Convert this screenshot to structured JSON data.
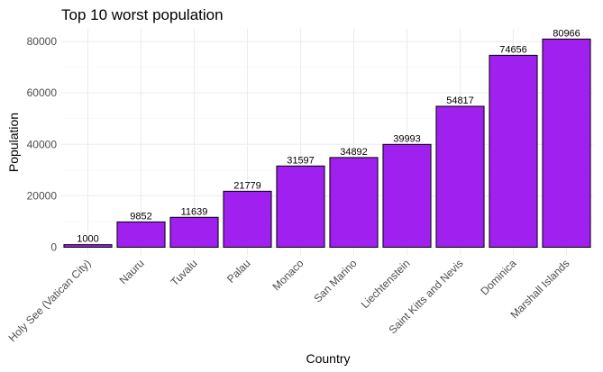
{
  "chart_data": {
    "type": "bar",
    "title": "Top 10 worst population",
    "xlabel": "Country",
    "ylabel": "Population",
    "categories": [
      "Holy See (Vatican City)",
      "Nauru",
      "Tuvalu",
      "Palau",
      "Monaco",
      "San Marino",
      "Liechtenstein",
      "Saint Kitts and Nevis",
      "Dominica",
      "Marshall Islands"
    ],
    "values": [
      1000,
      9852,
      11639,
      21779,
      31597,
      34892,
      39993,
      54817,
      74656,
      80966
    ],
    "data_labels": [
      "1000",
      "9852",
      "11639",
      "21779",
      "31597",
      "34892",
      "39993",
      "54817",
      "74656",
      "80966"
    ],
    "yticks": [
      0,
      20000,
      40000,
      60000,
      80000
    ],
    "ytick_labels": [
      "0",
      "20000",
      "40000",
      "60000",
      "80000"
    ],
    "ylim": [
      -2976,
      84942
    ],
    "grid": true,
    "legend": "none",
    "colors": {
      "bar_fill": "#a020f0",
      "bar_stroke": "#000000",
      "grid": "#ebebeb"
    }
  }
}
